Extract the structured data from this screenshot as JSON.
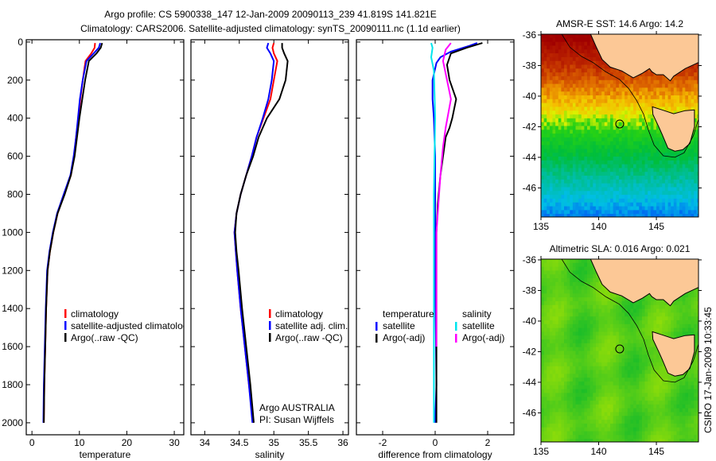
{
  "title_line1": "Argo profile: CS 5900338_147 12-Jan-2009 20090113_239 41.819S 141.821E",
  "title_line2": "Climatology: CARS2006. Satellite-adjusted climatology: synTS_20090111.nc (1.1d earlier)",
  "side_stamp": "CSIRO 17-Jan-2009 10:33:45",
  "colors": {
    "climatology": "#ff0000",
    "satellite": "#0000ff",
    "argo": "#000000",
    "sal_satellite": "#00e5ee",
    "sal_argo": "#ff00ff"
  },
  "chart_data": [
    {
      "id": "temperature",
      "type": "line",
      "xlabel": "temperature",
      "ylabel": "",
      "xlim": [
        -1.2,
        32
      ],
      "ylim": [
        2063,
        -12
      ],
      "xticks": [
        0,
        10,
        20,
        30
      ],
      "yticks": [
        0,
        200,
        400,
        600,
        800,
        1000,
        1200,
        1400,
        1600,
        1800,
        2000
      ],
      "show_ytick_labels": true,
      "legend": {
        "placement": "center-left",
        "entries": [
          "climatology",
          "satellite-adjusted climatology",
          "Argo(..raw -QC)"
        ]
      },
      "series": [
        {
          "name": "climatology",
          "color": "#ff0000",
          "points": [
            [
              13.3,
              5
            ],
            [
              13.2,
              30
            ],
            [
              12.5,
              60
            ],
            [
              11.3,
              100
            ],
            [
              10.7,
              200
            ],
            [
              10.2,
              300
            ],
            [
              9.8,
              400
            ],
            [
              9.3,
              500
            ],
            [
              8.9,
              600
            ],
            [
              8.2,
              700
            ],
            [
              6.8,
              800
            ],
            [
              5.4,
              900
            ],
            [
              4.5,
              1000
            ],
            [
              3.8,
              1100
            ],
            [
              3.3,
              1200
            ],
            [
              3,
              1400
            ],
            [
              2.8,
              1600
            ],
            [
              2.6,
              1800
            ],
            [
              2.5,
              2000
            ]
          ]
        },
        {
          "name": "satellite",
          "color": "#0000ff",
          "points": [
            [
              14.4,
              5
            ],
            [
              14.1,
              30
            ],
            [
              13,
              60
            ],
            [
              11.5,
              100
            ],
            [
              10.7,
              200
            ],
            [
              10.1,
              300
            ],
            [
              9.7,
              400
            ],
            [
              9.3,
              500
            ],
            [
              8.8,
              600
            ],
            [
              8.1,
              700
            ],
            [
              6.7,
              800
            ],
            [
              5.3,
              900
            ],
            [
              4.4,
              1000
            ],
            [
              3.7,
              1100
            ],
            [
              3.2,
              1200
            ],
            [
              2.9,
              1400
            ],
            [
              2.7,
              1600
            ],
            [
              2.5,
              1800
            ],
            [
              2.4,
              2000
            ]
          ]
        },
        {
          "name": "Argo",
          "color": "#000000",
          "points": [
            [
              14.8,
              5
            ],
            [
              14.5,
              30
            ],
            [
              13.6,
              60
            ],
            [
              12,
              100
            ],
            [
              11.2,
              200
            ],
            [
              10.6,
              300
            ],
            [
              10,
              400
            ],
            [
              9.5,
              500
            ],
            [
              9,
              600
            ],
            [
              8.2,
              700
            ],
            [
              6.9,
              800
            ],
            [
              5.4,
              900
            ],
            [
              4.5,
              1000
            ],
            [
              3.8,
              1100
            ],
            [
              3.3,
              1200
            ],
            [
              3,
              1400
            ],
            [
              2.8,
              1600
            ],
            [
              2.6,
              1800
            ],
            [
              2.5,
              2000
            ]
          ]
        }
      ]
    },
    {
      "id": "salinity",
      "type": "line",
      "xlabel": "salinity",
      "xlim": [
        33.8,
        36.08
      ],
      "ylim": [
        2063,
        -12
      ],
      "xticks": [
        34,
        34.5,
        35,
        35.5,
        36
      ],
      "yticks": [
        0,
        200,
        400,
        600,
        800,
        1000,
        1200,
        1400,
        1600,
        1800,
        2000
      ],
      "show_ytick_labels": false,
      "legend": {
        "placement": "center-right",
        "entries": [
          "climatology",
          "satellite adj. clim.",
          "Argo(..raw -QC)"
        ]
      },
      "annotation": [
        "Argo AUSTRALIA",
        "PI: Susan Wijffels"
      ],
      "series": [
        {
          "name": "climatology",
          "color": "#ff0000",
          "points": [
            [
              35.0,
              5
            ],
            [
              34.98,
              30
            ],
            [
              35.0,
              60
            ],
            [
              35.05,
              100
            ],
            [
              35.0,
              200
            ],
            [
              34.95,
              300
            ],
            [
              34.85,
              400
            ],
            [
              34.75,
              500
            ],
            [
              34.68,
              600
            ],
            [
              34.6,
              700
            ],
            [
              34.52,
              800
            ],
            [
              34.46,
              900
            ],
            [
              34.43,
              1000
            ],
            [
              34.45,
              1100
            ],
            [
              34.47,
              1200
            ],
            [
              34.52,
              1400
            ],
            [
              34.58,
              1600
            ],
            [
              34.64,
              1800
            ],
            [
              34.7,
              2000
            ]
          ]
        },
        {
          "name": "satellite",
          "color": "#0000ff",
          "points": [
            [
              34.92,
              5
            ],
            [
              34.9,
              30
            ],
            [
              34.95,
              60
            ],
            [
              35.0,
              100
            ],
            [
              34.97,
              200
            ],
            [
              34.92,
              300
            ],
            [
              34.84,
              400
            ],
            [
              34.75,
              500
            ],
            [
              34.68,
              600
            ],
            [
              34.6,
              700
            ],
            [
              34.52,
              800
            ],
            [
              34.46,
              900
            ],
            [
              34.43,
              1000
            ],
            [
              34.45,
              1100
            ],
            [
              34.47,
              1200
            ],
            [
              34.52,
              1400
            ],
            [
              34.58,
              1600
            ],
            [
              34.64,
              1800
            ],
            [
              34.69,
              2000
            ]
          ]
        },
        {
          "name": "Argo",
          "color": "#000000",
          "points": [
            [
              35.12,
              5
            ],
            [
              35.12,
              30
            ],
            [
              35.15,
              60
            ],
            [
              35.2,
              100
            ],
            [
              35.17,
              200
            ],
            [
              35.08,
              300
            ],
            [
              34.9,
              400
            ],
            [
              34.78,
              500
            ],
            [
              34.7,
              600
            ],
            [
              34.6,
              700
            ],
            [
              34.52,
              800
            ],
            [
              34.46,
              900
            ],
            [
              34.44,
              1000
            ],
            [
              34.46,
              1100
            ],
            [
              34.49,
              1200
            ],
            [
              34.54,
              1400
            ],
            [
              34.6,
              1600
            ],
            [
              34.66,
              1800
            ],
            [
              34.71,
              2000
            ]
          ]
        }
      ]
    },
    {
      "id": "difference",
      "type": "line",
      "xlabel": "difference from climatology",
      "xlim": [
        -3,
        3
      ],
      "ylim": [
        2063,
        -12
      ],
      "xticks": [
        -2,
        0,
        2
      ],
      "yticks": [
        0,
        200,
        400,
        600,
        800,
        1000,
        1200,
        1400,
        1600,
        1800,
        2000
      ],
      "show_ytick_labels": false,
      "legend": {
        "placement": "center",
        "headers": [
          "temperature",
          "salinity"
        ],
        "entries": [
          "satellite",
          "Argo(-adj)",
          "satellite",
          "Argo(-adj)"
        ]
      },
      "series": [
        {
          "name": "temperature satellite",
          "color": "#0000ff",
          "points": [
            [
              1.6,
              5
            ],
            [
              1.3,
              20
            ],
            [
              0.6,
              50
            ],
            [
              0.2,
              80
            ],
            [
              0.05,
              110
            ],
            [
              -0.1,
              200
            ],
            [
              -0.1,
              300
            ],
            [
              -0.05,
              400
            ],
            [
              0,
              600
            ],
            [
              0,
              800
            ],
            [
              0,
              1200
            ],
            [
              0.05,
              1800
            ],
            [
              0,
              2000
            ]
          ]
        },
        {
          "name": "temperature Argo(-adj)",
          "color": "#000000",
          "points": [
            [
              1.8,
              5
            ],
            [
              1.2,
              30
            ],
            [
              0.6,
              60
            ],
            [
              0.45,
              120
            ],
            [
              0.55,
              200
            ],
            [
              0.8,
              300
            ],
            [
              0.65,
              400
            ],
            [
              0.55,
              450
            ],
            [
              0.4,
              500
            ],
            [
              0.3,
              600
            ],
            [
              0.2,
              700
            ],
            [
              0.1,
              850
            ],
            [
              0.05,
              1000
            ],
            [
              0.05,
              1400
            ],
            [
              0.05,
              2000
            ]
          ]
        },
        {
          "name": "salinity satellite",
          "color": "#00e5ee",
          "points": [
            [
              -0.15,
              5
            ],
            [
              -0.1,
              30
            ],
            [
              -0.15,
              80
            ],
            [
              -0.05,
              150
            ],
            [
              0,
              400
            ],
            [
              -0.05,
              800
            ],
            [
              -0.05,
              1600
            ],
            [
              -0.05,
              2000
            ]
          ]
        },
        {
          "name": "salinity Argo(-adj)",
          "color": "#ff00ff",
          "points": [
            [
              0.6,
              5
            ],
            [
              0.4,
              40
            ],
            [
              0.3,
              100
            ],
            [
              0.45,
              200
            ],
            [
              0.6,
              300
            ],
            [
              0.4,
              450
            ],
            [
              0.3,
              550
            ],
            [
              0.2,
              700
            ],
            [
              0.05,
              1000
            ],
            [
              0.05,
              1400
            ],
            [
              0.05,
              1600
            ]
          ]
        }
      ]
    },
    {
      "id": "sst_map",
      "type": "heatmap",
      "title": "AMSR-E SST: 14.6 Argo: 14.2",
      "xlim": [
        135,
        148.65
      ],
      "ylim": [
        -47.9,
        -35.95
      ],
      "xticks": [
        135,
        140,
        145
      ],
      "yticks": [
        -36,
        -38,
        -40,
        -42,
        -44,
        -46
      ],
      "argo_position": [
        141.82,
        -41.82
      ]
    },
    {
      "id": "sla_map",
      "type": "heatmap",
      "title": "Altimetric SLA: 0.016 Argo: 0.021",
      "xlim": [
        135,
        148.65
      ],
      "ylim": [
        -47.9,
        -35.95
      ],
      "xticks": [
        135,
        140,
        145
      ],
      "yticks": [
        -36,
        -38,
        -40,
        -42,
        -44,
        -46
      ],
      "argo_position": [
        141.82,
        -41.82
      ]
    }
  ],
  "coast": {
    "mainland": [
      [
        139.3,
        -35.95
      ],
      [
        139.8,
        -36.8
      ],
      [
        140.3,
        -37.6
      ],
      [
        141,
        -38.1
      ],
      [
        142,
        -38.35
      ],
      [
        143,
        -38.8
      ],
      [
        143.8,
        -38.5
      ],
      [
        144.4,
        -38.2
      ],
      [
        144.6,
        -38.4
      ],
      [
        145,
        -38.6
      ],
      [
        145.6,
        -38.6
      ],
      [
        146.2,
        -39.0
      ],
      [
        146.5,
        -38.7
      ],
      [
        147.5,
        -38.2
      ],
      [
        148.65,
        -37.8
      ],
      [
        148.65,
        -35.95
      ]
    ],
    "tasmania": [
      [
        144.65,
        -40.7
      ],
      [
        145.5,
        -40.9
      ],
      [
        146.5,
        -41.15
      ],
      [
        147.5,
        -40.95
      ],
      [
        148.3,
        -40.9
      ],
      [
        148.3,
        -42.0
      ],
      [
        147.9,
        -43.1
      ],
      [
        147.3,
        -43.5
      ],
      [
        146.6,
        -43.6
      ],
      [
        146.0,
        -43.4
      ],
      [
        145.5,
        -42.5
      ],
      [
        145.2,
        -42.0
      ],
      [
        144.7,
        -41.2
      ]
    ],
    "isobath": [
      [
        136.8,
        -35.95
      ],
      [
        137.5,
        -36.8
      ],
      [
        138.5,
        -37.4
      ],
      [
        139.5,
        -37.8
      ],
      [
        140.6,
        -38.4
      ],
      [
        141.8,
        -38.9
      ],
      [
        142.6,
        -39.5
      ],
      [
        143.3,
        -40.3
      ],
      [
        143.9,
        -41.2
      ],
      [
        144.3,
        -42.2
      ],
      [
        144.8,
        -43.2
      ],
      [
        145.6,
        -43.9
      ],
      [
        146.6,
        -44.0
      ],
      [
        147.4,
        -43.7
      ],
      [
        148.2,
        -42.6
      ],
      [
        148.65,
        -41.5
      ]
    ]
  }
}
